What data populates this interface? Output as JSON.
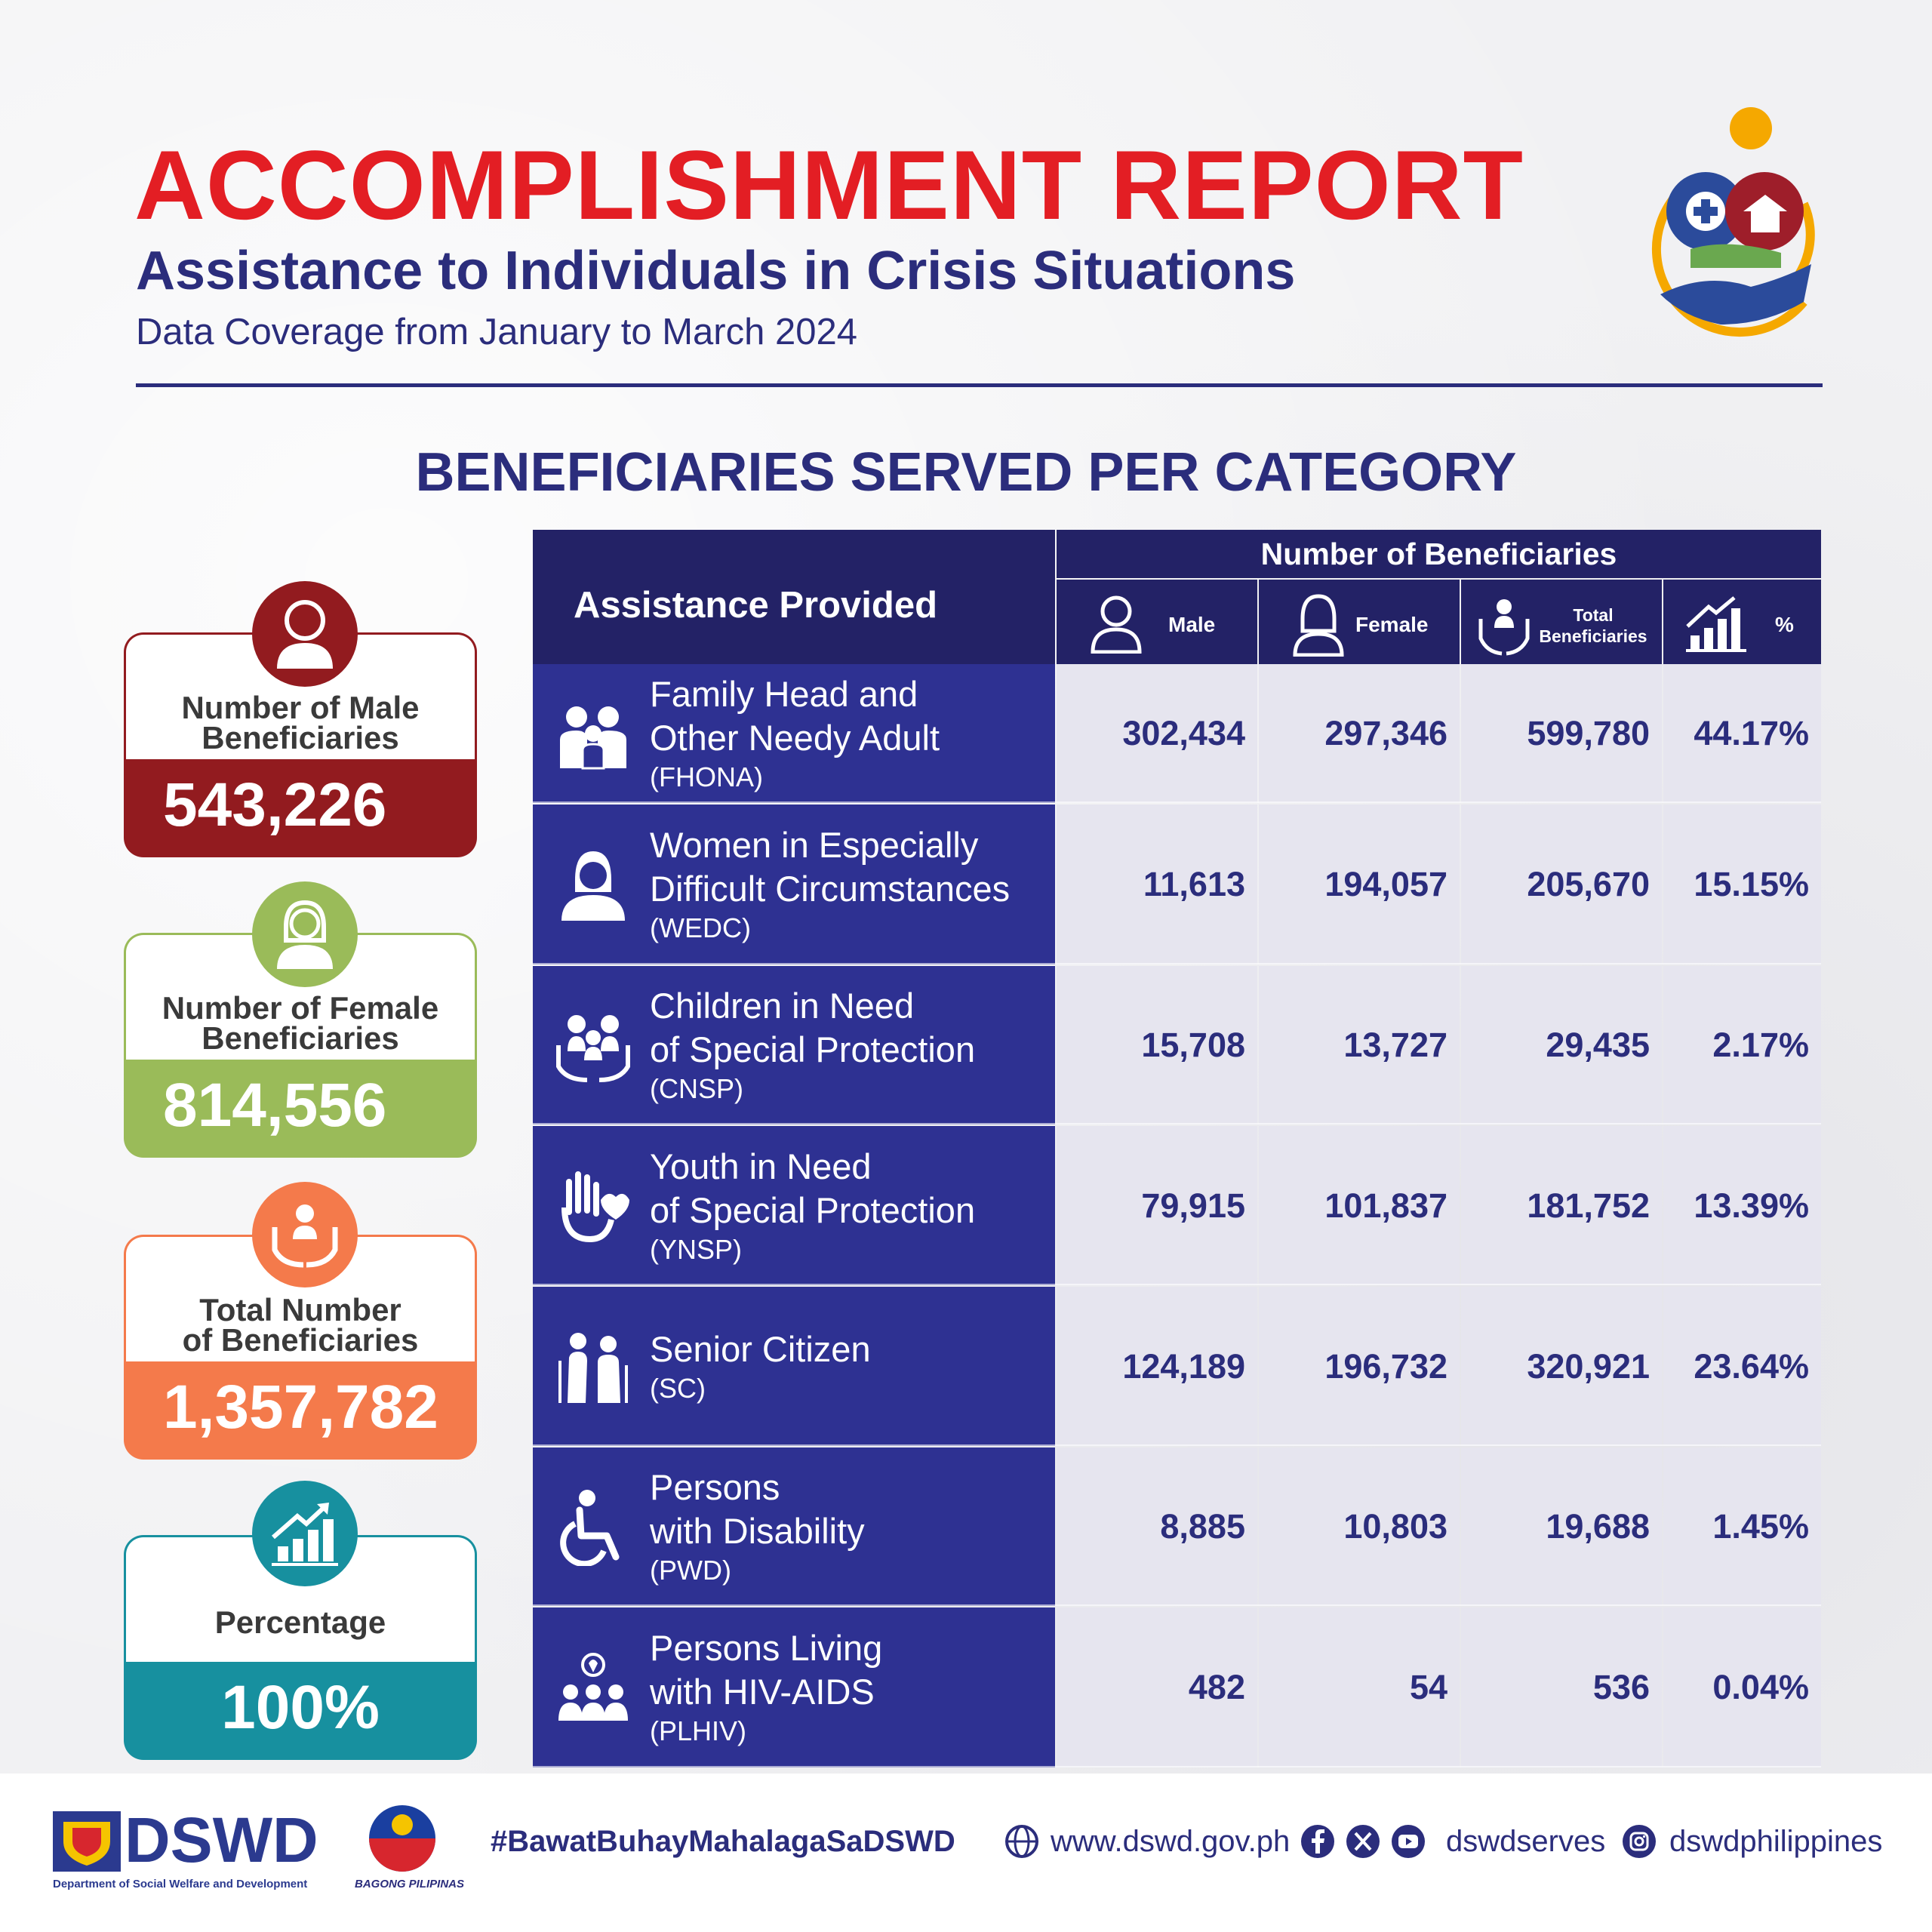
{
  "header": {
    "title": "ACCOMPLISHMENT REPORT",
    "subtitle": "Assistance to Individuals in Crisis Situations",
    "coverage": "Data Coverage from January to March 2024",
    "section_title": "BENEFICIARIES SERVED PER CATEGORY"
  },
  "summary": {
    "male": {
      "label_line1": "Number of Male",
      "label_line2": "Beneficiaries",
      "value": "543,226",
      "color": "#921b1f"
    },
    "female": {
      "label_line1": "Number of Female",
      "label_line2": "Beneficiaries",
      "value": "814,556",
      "color": "#9abb59"
    },
    "total": {
      "label_line1": "Total Number",
      "label_line2": "of Beneficiaries",
      "value": "1,357,782",
      "color": "#f47a4b"
    },
    "percentage": {
      "label": "Percentage",
      "value": "100%",
      "color": "#17909f"
    }
  },
  "table": {
    "col_assistance": "Assistance Provided",
    "col_group": "Number of Beneficiaries",
    "col_male": "Male",
    "col_female": "Female",
    "col_total_line1": "Total",
    "col_total_line2": "Beneficiaries",
    "col_pct": "%",
    "rows": [
      {
        "name1": "Family Head and",
        "name2": "Other Needy Adult",
        "abbr": "(FHONA)",
        "male": "302,434",
        "female": "297,346",
        "total": "599,780",
        "pct": "44.17%",
        "icon": "family-icon"
      },
      {
        "name1": "Women in Especially",
        "name2": "Difficult Circumstances",
        "abbr": "(WEDC)",
        "male": "11,613",
        "female": "194,057",
        "total": "205,670",
        "pct": "15.15%",
        "icon": "woman-icon"
      },
      {
        "name1": "Children in Need",
        "name2": "of Special Protection",
        "abbr": "(CNSP)",
        "male": "15,708",
        "female": "13,727",
        "total": "29,435",
        "pct": "2.17%",
        "icon": "children-icon"
      },
      {
        "name1": "Youth in Need",
        "name2": "of Special Protection",
        "abbr": "(YNSP)",
        "male": "79,915",
        "female": "101,837",
        "total": "181,752",
        "pct": "13.39%",
        "icon": "youth-hands-icon"
      },
      {
        "name1": "Senior Citizen",
        "name2": "",
        "abbr": "(SC)",
        "male": "124,189",
        "female": "196,732",
        "total": "320,921",
        "pct": "23.64%",
        "icon": "seniors-icon"
      },
      {
        "name1": "Persons",
        "name2": "with Disability",
        "abbr": "(PWD)",
        "male": "8,885",
        "female": "10,803",
        "total": "19,688",
        "pct": "1.45%",
        "icon": "wheelchair-icon"
      },
      {
        "name1": "Persons Living",
        "name2": "with HIV-AIDS",
        "abbr": "(PLHIV)",
        "male": "482",
        "female": "54",
        "total": "536",
        "pct": "0.04%",
        "icon": "ribbon-group-icon"
      }
    ]
  },
  "footer": {
    "dswd": "DSWD",
    "dswd_full": "Department of Social Welfare and Development",
    "bagong": "BAGONG PILIPINAS",
    "hashtag": "#BawatBuhayMahalagaSaDSWD",
    "website": "www.dswd.gov.ph",
    "social1": "dswdserves",
    "social2": "dswdphilippines"
  }
}
